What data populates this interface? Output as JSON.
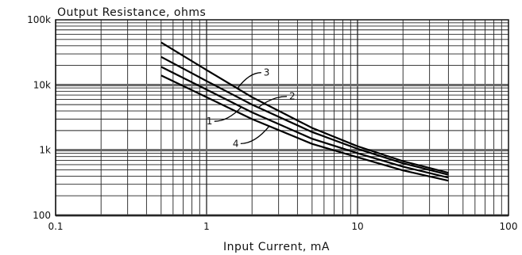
{
  "chart_data": {
    "type": "line",
    "title": "Output Resistance, ohms",
    "xlabel": "Input Current, mA",
    "ylabel": "",
    "x_scale": "log",
    "y_scale": "log",
    "xlim": [
      0.1,
      100
    ],
    "ylim": [
      100,
      100000
    ],
    "grid": true,
    "x_ticks": [
      {
        "value": 0.1,
        "label": "0.1"
      },
      {
        "value": 1,
        "label": "1"
      },
      {
        "value": 10,
        "label": "10"
      },
      {
        "value": 100,
        "label": "100"
      }
    ],
    "y_ticks": [
      {
        "value": 100,
        "label": "100"
      },
      {
        "value": 1000,
        "label": "1k"
      },
      {
        "value": 10000,
        "label": "10k"
      },
      {
        "value": 100000,
        "label": "100k"
      }
    ],
    "series": [
      {
        "name": "3",
        "x": [
          0.5,
          1,
          2,
          5,
          10,
          20,
          40
        ],
        "y": [
          45000,
          17000,
          6500,
          2200,
          1150,
          680,
          450
        ]
      },
      {
        "name": "2",
        "x": [
          0.5,
          1,
          2,
          5,
          10,
          20,
          40
        ],
        "y": [
          27000,
          11500,
          5000,
          1900,
          1050,
          630,
          420
        ]
      },
      {
        "name": "1",
        "x": [
          0.5,
          1,
          2,
          5,
          10,
          20,
          40
        ],
        "y": [
          19000,
          8500,
          3800,
          1500,
          900,
          560,
          380
        ]
      },
      {
        "name": "4",
        "x": [
          0.5,
          1,
          2,
          5,
          10,
          20,
          40
        ],
        "y": [
          14000,
          6500,
          3000,
          1250,
          780,
          490,
          340
        ]
      }
    ],
    "annotations": [
      {
        "text": "3",
        "series": "3",
        "at_x": 1.6
      },
      {
        "text": "2",
        "series": "2",
        "at_x": 2.2
      },
      {
        "text": "1",
        "series": "1",
        "at_x": 1.7
      },
      {
        "text": "4",
        "series": "4",
        "at_x": 2.6
      }
    ]
  }
}
